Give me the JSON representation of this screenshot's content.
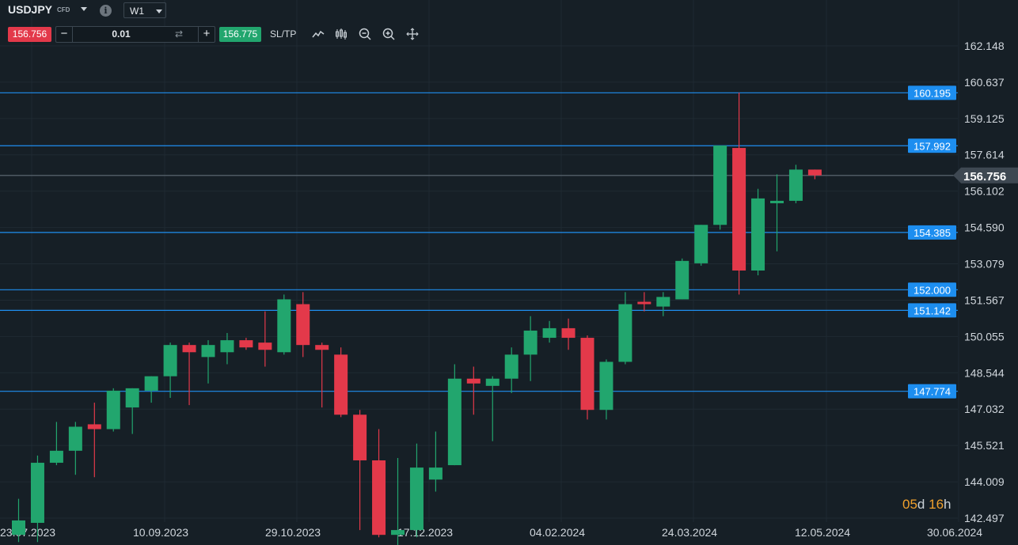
{
  "header": {
    "symbol": "USDJPY",
    "symbol_type": "CFD",
    "timeframe": "W1",
    "bid": "156.756",
    "ask": "156.775",
    "quantity": "0.01",
    "sltp_label": "SL/TP"
  },
  "timer": {
    "days": "05",
    "days_unit": "d",
    "hours": "16",
    "hours_unit": "h"
  },
  "colors": {
    "background": "#161f26",
    "bull": "#22a66e",
    "bear": "#e3394a",
    "level_line": "#1f8ff0",
    "level_label_bg": "#1d8ef0",
    "current_price_line": "#4f5a63",
    "grid": "#1f2a32"
  },
  "icons": [
    "chevron-down-icon",
    "info-icon",
    "swap-icon",
    "line-chart-icon",
    "candlestick-icon",
    "zoom-out-icon",
    "zoom-in-icon",
    "move-icon"
  ],
  "chart_data": {
    "type": "candlestick",
    "timeframe": "W1",
    "y_axis": {
      "min": 142.497,
      "max": 162.148,
      "ticks": [
        "162.148",
        "160.637",
        "159.125",
        "157.614",
        "156.102",
        "154.590",
        "153.079",
        "151.567",
        "150.055",
        "148.544",
        "147.032",
        "145.521",
        "144.009",
        "142.497"
      ]
    },
    "x_axis": {
      "ticks": [
        "23.07.2023",
        "10.09.2023",
        "29.10.2023",
        "17.12.2023",
        "04.02.2024",
        "24.03.2024",
        "12.05.2024",
        "30.06.2024"
      ]
    },
    "current_price": 156.756,
    "current_price_label": "156.756",
    "levels": [
      {
        "value": 160.195,
        "label": "160.195"
      },
      {
        "value": 157.992,
        "label": "157.992"
      },
      {
        "value": 154.385,
        "label": "154.385"
      },
      {
        "value": 152.0,
        "label": "152.000"
      },
      {
        "value": 151.142,
        "label": "151.142"
      },
      {
        "value": 147.774,
        "label": "147.774"
      }
    ],
    "candles": [
      {
        "o": 141.8,
        "h": 143.3,
        "l": 141.5,
        "c": 142.4
      },
      {
        "o": 142.3,
        "h": 145.1,
        "l": 141.5,
        "c": 144.8
      },
      {
        "o": 144.8,
        "h": 146.5,
        "l": 144.7,
        "c": 145.3
      },
      {
        "o": 145.3,
        "h": 146.5,
        "l": 144.3,
        "c": 146.3
      },
      {
        "o": 146.4,
        "h": 147.3,
        "l": 144.2,
        "c": 146.2
      },
      {
        "o": 146.2,
        "h": 147.9,
        "l": 146.1,
        "c": 147.8
      },
      {
        "o": 147.1,
        "h": 147.9,
        "l": 146.0,
        "c": 147.9
      },
      {
        "o": 147.8,
        "h": 148.4,
        "l": 147.3,
        "c": 148.4
      },
      {
        "o": 148.4,
        "h": 149.8,
        "l": 147.5,
        "c": 149.7
      },
      {
        "o": 149.7,
        "h": 149.8,
        "l": 147.2,
        "c": 149.4
      },
      {
        "o": 149.2,
        "h": 149.9,
        "l": 148.1,
        "c": 149.7
      },
      {
        "o": 149.4,
        "h": 150.2,
        "l": 148.9,
        "c": 149.9
      },
      {
        "o": 149.9,
        "h": 150.0,
        "l": 149.5,
        "c": 149.6
      },
      {
        "o": 149.8,
        "h": 151.1,
        "l": 148.8,
        "c": 149.5
      },
      {
        "o": 149.4,
        "h": 151.8,
        "l": 149.3,
        "c": 151.6
      },
      {
        "o": 151.4,
        "h": 151.9,
        "l": 149.2,
        "c": 149.7
      },
      {
        "o": 149.7,
        "h": 149.8,
        "l": 147.1,
        "c": 149.5
      },
      {
        "o": 149.3,
        "h": 149.6,
        "l": 146.7,
        "c": 146.8
      },
      {
        "o": 146.8,
        "h": 147.0,
        "l": 142.0,
        "c": 144.9
      },
      {
        "o": 144.9,
        "h": 146.2,
        "l": 141.7,
        "c": 141.8
      },
      {
        "o": 141.8,
        "h": 145.0,
        "l": 140.8,
        "c": 142.0
      },
      {
        "o": 142.0,
        "h": 145.6,
        "l": 141.7,
        "c": 144.6
      },
      {
        "o": 144.1,
        "h": 146.1,
        "l": 143.6,
        "c": 144.6
      },
      {
        "o": 144.7,
        "h": 148.9,
        "l": 144.7,
        "c": 148.3
      },
      {
        "o": 148.3,
        "h": 148.8,
        "l": 146.8,
        "c": 148.1
      },
      {
        "o": 148.0,
        "h": 148.4,
        "l": 145.7,
        "c": 148.3
      },
      {
        "o": 148.3,
        "h": 149.6,
        "l": 147.7,
        "c": 149.3
      },
      {
        "o": 149.3,
        "h": 150.9,
        "l": 148.2,
        "c": 150.3
      },
      {
        "o": 150.0,
        "h": 150.7,
        "l": 149.8,
        "c": 150.4
      },
      {
        "o": 150.4,
        "h": 150.8,
        "l": 149.5,
        "c": 150.0
      },
      {
        "o": 150.0,
        "h": 150.1,
        "l": 146.6,
        "c": 147.0
      },
      {
        "o": 147.0,
        "h": 149.1,
        "l": 146.6,
        "c": 149.0
      },
      {
        "o": 149.0,
        "h": 151.9,
        "l": 148.9,
        "c": 151.4
      },
      {
        "o": 151.5,
        "h": 151.9,
        "l": 151.1,
        "c": 151.4
      },
      {
        "o": 151.3,
        "h": 151.9,
        "l": 150.9,
        "c": 151.7
      },
      {
        "o": 151.6,
        "h": 153.3,
        "l": 151.6,
        "c": 153.2
      },
      {
        "o": 153.1,
        "h": 154.7,
        "l": 153.0,
        "c": 154.7
      },
      {
        "o": 154.7,
        "h": 158.0,
        "l": 154.5,
        "c": 158.0
      },
      {
        "o": 157.9,
        "h": 160.2,
        "l": 151.8,
        "c": 152.8
      },
      {
        "o": 152.8,
        "h": 156.2,
        "l": 152.6,
        "c": 155.8
      },
      {
        "o": 155.6,
        "h": 156.8,
        "l": 153.6,
        "c": 155.7
      },
      {
        "o": 155.7,
        "h": 157.2,
        "l": 155.6,
        "c": 157.0
      },
      {
        "o": 157.0,
        "h": 157.0,
        "l": 156.6,
        "c": 156.76
      }
    ]
  }
}
